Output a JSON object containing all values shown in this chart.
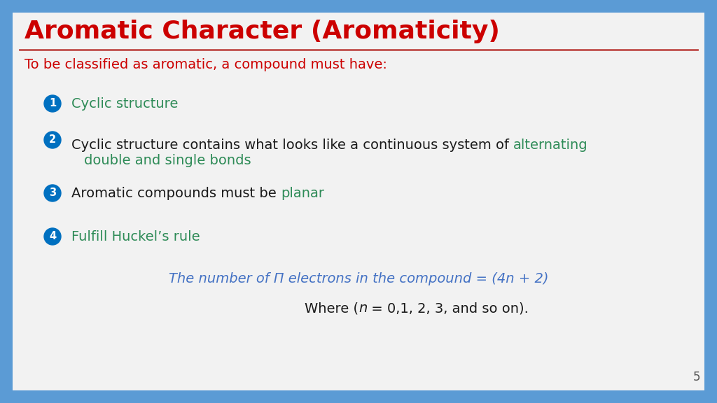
{
  "title": "Aromatic Character (Aromaticity)",
  "title_color": "#cc0000",
  "title_fontsize": 26,
  "subtitle": "To be classified as aromatic, a compound must have:",
  "subtitle_color": "#cc0000",
  "subtitle_fontsize": 14,
  "bg_outer": "#5b9bd5",
  "bg_inner": "#f2f2f2",
  "separator_color": "#c0504d",
  "bullet_color": "#0070c0",
  "item_fontsize": 14,
  "green_color": "#2e8b57",
  "dark_color": "#1a1a1a",
  "huckel_formula": "The number of Π electrons in the compound = (4n + 2)",
  "huckel_color": "#4472c4",
  "huckel_fontsize": 14,
  "where_color": "#1a1a1a",
  "where_fontsize": 14,
  "page_number": "5",
  "page_color": "#555555",
  "page_fontsize": 12,
  "border_width": 18
}
